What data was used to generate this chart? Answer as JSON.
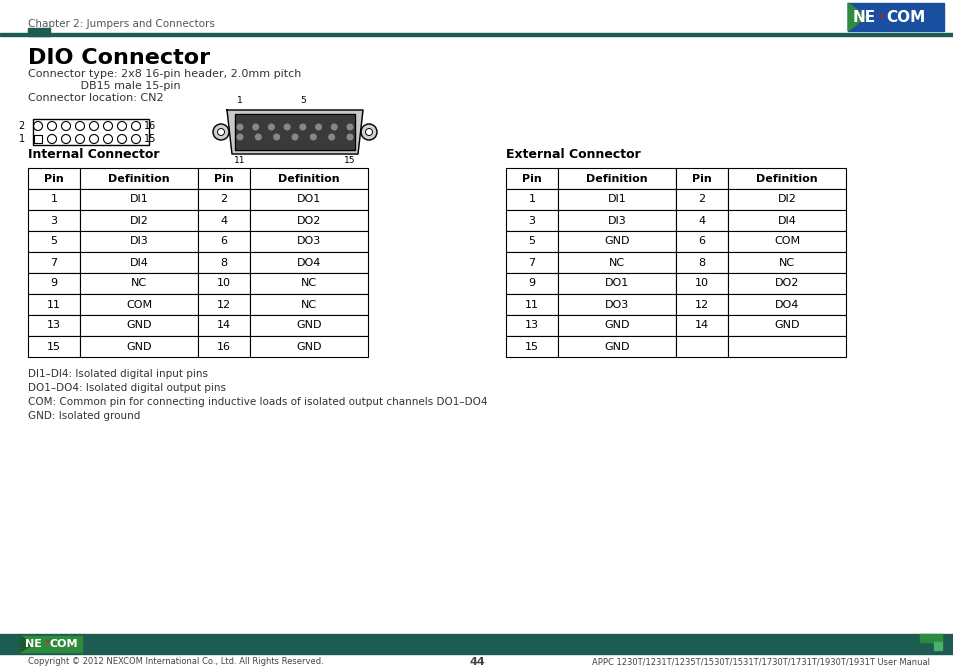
{
  "page_header": "Chapter 2: Jumpers and Connectors",
  "title": "DIO Connector",
  "connector_type_line1": "Connector type: 2x8 16-pin header, 2.0mm pitch",
  "connector_type_line2": "               DB15 male 15-pin",
  "connector_location": "Connector location: CN2",
  "internal_title": "Internal Connector",
  "external_title": "External Connector",
  "internal_headers": [
    "Pin",
    "Definition",
    "Pin",
    "Definition"
  ],
  "internal_rows": [
    [
      "1",
      "DI1",
      "2",
      "DO1"
    ],
    [
      "3",
      "DI2",
      "4",
      "DO2"
    ],
    [
      "5",
      "DI3",
      "6",
      "DO3"
    ],
    [
      "7",
      "DI4",
      "8",
      "DO4"
    ],
    [
      "9",
      "NC",
      "10",
      "NC"
    ],
    [
      "11",
      "COM",
      "12",
      "NC"
    ],
    [
      "13",
      "GND",
      "14",
      "GND"
    ],
    [
      "15",
      "GND",
      "16",
      "GND"
    ]
  ],
  "external_headers": [
    "Pin",
    "Definition",
    "Pin",
    "Definition"
  ],
  "external_rows": [
    [
      "1",
      "DI1",
      "2",
      "DI2"
    ],
    [
      "3",
      "DI3",
      "4",
      "DI4"
    ],
    [
      "5",
      "GND",
      "6",
      "COM"
    ],
    [
      "7",
      "NC",
      "8",
      "NC"
    ],
    [
      "9",
      "DO1",
      "10",
      "DO2"
    ],
    [
      "11",
      "DO3",
      "12",
      "DO4"
    ],
    [
      "13",
      "GND",
      "14",
      "GND"
    ],
    [
      "15",
      "GND",
      "",
      ""
    ]
  ],
  "notes": [
    "DI1–DI4: Isolated digital input pins",
    "DO1–DO4: Isolated digital output pins",
    "COM: Common pin for connecting inductive loads of isolated output channels DO1–DO4",
    "GND: Isolated ground"
  ],
  "footer_left": "Copyright © 2012 NEXCOM International Co., Ltd. All Rights Reserved.",
  "footer_center": "44",
  "footer_right": "APPC 1230T/1231T/1235T/1530T/1531T/1730T/1731T/1930T/1931T User Manual",
  "header_bar_color": "#1d5c52",
  "nexcom_blue": "#1a4fa0",
  "nexcom_green_logo": "#2e8b3e",
  "table_border_color": "#000000",
  "bg_color": "#ffffff",
  "text_color": "#000000",
  "footer_bar_color": "#1d5c52"
}
